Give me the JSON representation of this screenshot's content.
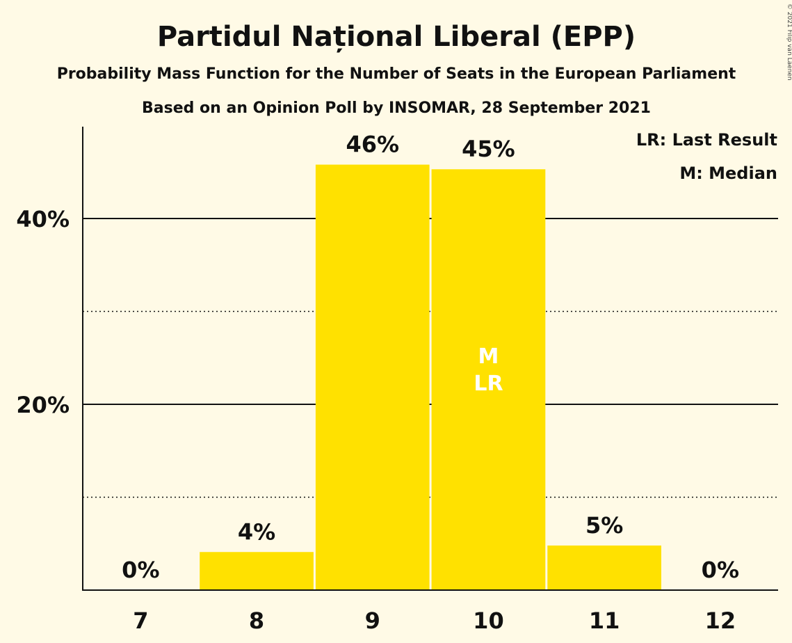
{
  "title": "Partidul Național Liberal (EPP)",
  "subtitle1": "Probability Mass Function for the Number of Seats in the European Parliament",
  "subtitle2": "Based on an Opinion Poll by INSOMAR, 28 September 2021",
  "copyright": "© 2021 Filip van Laenen",
  "legend": {
    "lr": "LR: Last Result",
    "m": "M: Median"
  },
  "colors": {
    "bar": "#FFE100",
    "background": "#FFFAE6",
    "inlabel": "#FFFFFF"
  },
  "chart_data": {
    "type": "bar",
    "categories": [
      "7",
      "8",
      "9",
      "10",
      "11",
      "12"
    ],
    "values": [
      0,
      4.1,
      45.8,
      45.3,
      4.8,
      0
    ],
    "data_labels": [
      "0%",
      "4%",
      "46%",
      "45%",
      "5%",
      "0%"
    ],
    "ylim": [
      0,
      50
    ],
    "yticks": [
      {
        "value": 20,
        "label": "20%"
      },
      {
        "value": 40,
        "label": "40%"
      }
    ],
    "minor_gridlines": [
      10,
      30
    ],
    "median_category": "10",
    "last_result_category": "10",
    "median_marker": "M",
    "last_result_marker": "LR"
  }
}
